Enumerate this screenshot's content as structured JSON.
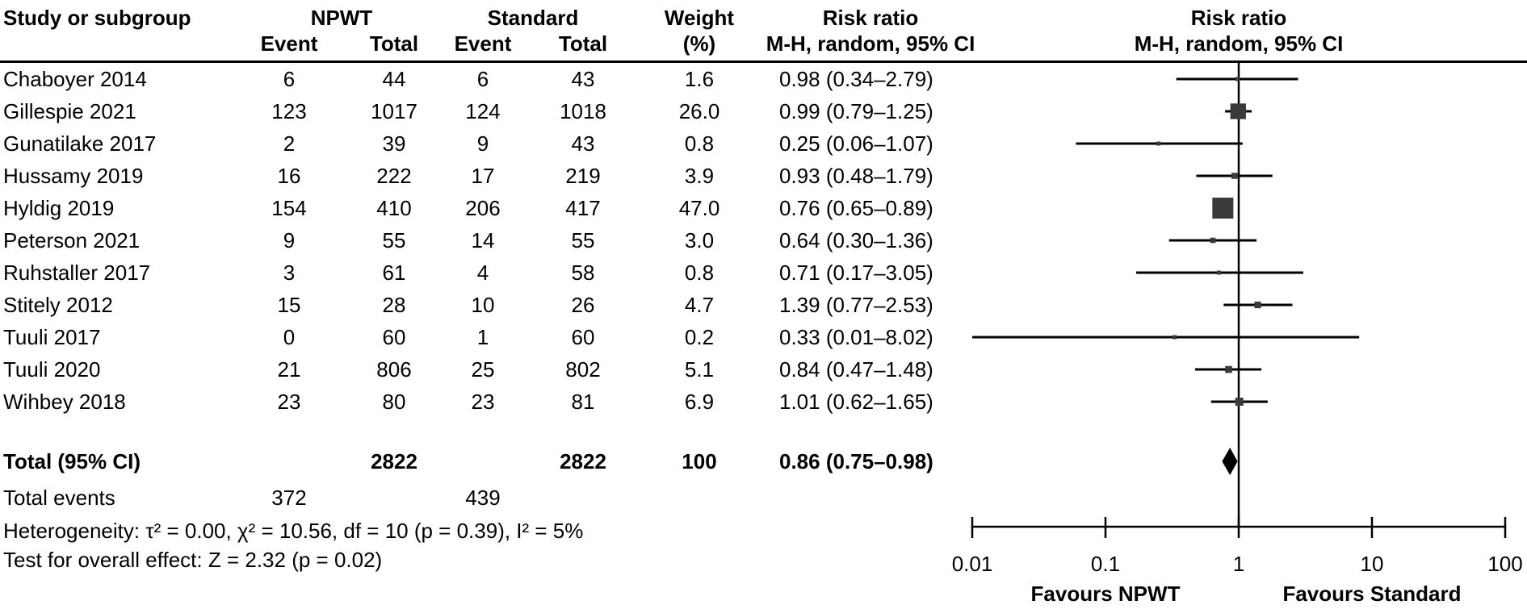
{
  "header": {
    "study": "Study or subgroup",
    "npwt": "NPWT",
    "standard": "Standard",
    "weight": "Weight",
    "event1": "Event",
    "total1": "Total",
    "event2": "Event",
    "total2": "Total",
    "pct": "(%)",
    "risk_ratio_text": "Risk ratio",
    "mh_text": "M-H, random, 95% CI",
    "risk_ratio_plot": "Risk ratio",
    "mh_plot": "M-H, random, 95% CI"
  },
  "rows": [
    {
      "study": "Chaboyer 2014",
      "e1": "6",
      "t1": "44",
      "e2": "6",
      "t2": "43",
      "w": "1.6",
      "rr": "0.98 (0.34–2.79)"
    },
    {
      "study": "Gillespie 2021",
      "e1": "123",
      "t1": "1017",
      "e2": "124",
      "t2": "1018",
      "w": "26.0",
      "rr": "0.99 (0.79–1.25)"
    },
    {
      "study": "Gunatilake 2017",
      "e1": "2",
      "t1": "39",
      "e2": "9",
      "t2": "43",
      "w": "0.8",
      "rr": "0.25 (0.06–1.07)"
    },
    {
      "study": "Hussamy 2019",
      "e1": "16",
      "t1": "222",
      "e2": "17",
      "t2": "219",
      "w": "3.9",
      "rr": "0.93 (0.48–1.79)"
    },
    {
      "study": "Hyldig 2019",
      "e1": "154",
      "t1": "410",
      "e2": "206",
      "t2": "417",
      "w": "47.0",
      "rr": "0.76 (0.65–0.89)"
    },
    {
      "study": "Peterson 2021",
      "e1": "9",
      "t1": "55",
      "e2": "14",
      "t2": "55",
      "w": "3.0",
      "rr": "0.64 (0.30–1.36)"
    },
    {
      "study": "Ruhstaller 2017",
      "e1": "3",
      "t1": "61",
      "e2": "4",
      "t2": "58",
      "w": "0.8",
      "rr": "0.71 (0.17–3.05)"
    },
    {
      "study": "Stitely 2012",
      "e1": "15",
      "t1": "28",
      "e2": "10",
      "t2": "26",
      "w": "4.7",
      "rr": "1.39 (0.77–2.53)"
    },
    {
      "study": "Tuuli 2017",
      "e1": "0",
      "t1": "60",
      "e2": "1",
      "t2": "60",
      "w": "0.2",
      "rr": "0.33 (0.01–8.02)"
    },
    {
      "study": "Tuuli 2020",
      "e1": "21",
      "t1": "806",
      "e2": "25",
      "t2": "802",
      "w": "5.1",
      "rr": "0.84 (0.47–1.48)"
    },
    {
      "study": "Wihbey 2018",
      "e1": "23",
      "t1": "80",
      "e2": "23",
      "t2": "81",
      "w": "6.9",
      "rr": "1.01 (0.62–1.65)"
    }
  ],
  "totals": {
    "label": "Total (95% CI)",
    "t1": "2822",
    "t2": "2822",
    "w": "100",
    "rr": "0.86 (0.75–0.98)",
    "events_label": "Total events",
    "events_npwt": "372",
    "events_standard": "439"
  },
  "footer": {
    "heterogeneity": "Heterogeneity:  τ² = 0.00, χ² = 10.56, df = 10 (p = 0.39), I² = 5%",
    "overall_effect": "Test for overall effect: Z = 2.32 (p = 0.02)"
  },
  "chart_data": {
    "type": "forest",
    "measure": "Risk ratio, M-H, random, 95% CI",
    "x_scale": "log10",
    "x_range": [
      0.01,
      100
    ],
    "x_ticks": [
      0.01,
      0.1,
      1,
      10,
      100
    ],
    "x_tick_labels": [
      "0.01",
      "0.1",
      "1",
      "10",
      "100"
    ],
    "reference_line": 1,
    "favours_left": "Favours NPWT",
    "favours_right": "Favours Standard",
    "marker_color": "#3a3a3a",
    "line_color": "#000000",
    "studies": [
      {
        "name": "Chaboyer 2014",
        "rr": 0.98,
        "ci_low": 0.34,
        "ci_high": 2.79,
        "weight": 1.6
      },
      {
        "name": "Gillespie 2021",
        "rr": 0.99,
        "ci_low": 0.79,
        "ci_high": 1.25,
        "weight": 26.0
      },
      {
        "name": "Gunatilake 2017",
        "rr": 0.25,
        "ci_low": 0.06,
        "ci_high": 1.07,
        "weight": 0.8
      },
      {
        "name": "Hussamy 2019",
        "rr": 0.93,
        "ci_low": 0.48,
        "ci_high": 1.79,
        "weight": 3.9
      },
      {
        "name": "Hyldig 2019",
        "rr": 0.76,
        "ci_low": 0.65,
        "ci_high": 0.89,
        "weight": 47.0
      },
      {
        "name": "Peterson 2021",
        "rr": 0.64,
        "ci_low": 0.3,
        "ci_high": 1.36,
        "weight": 3.0
      },
      {
        "name": "Ruhstaller 2017",
        "rr": 0.71,
        "ci_low": 0.17,
        "ci_high": 3.05,
        "weight": 0.8
      },
      {
        "name": "Stitely 2012",
        "rr": 1.39,
        "ci_low": 0.77,
        "ci_high": 2.53,
        "weight": 4.7
      },
      {
        "name": "Tuuli 2017",
        "rr": 0.33,
        "ci_low": 0.01,
        "ci_high": 8.02,
        "weight": 0.2
      },
      {
        "name": "Tuuli 2020",
        "rr": 0.84,
        "ci_low": 0.47,
        "ci_high": 1.48,
        "weight": 5.1
      },
      {
        "name": "Wihbey 2018",
        "rr": 1.01,
        "ci_low": 0.62,
        "ci_high": 1.65,
        "weight": 6.9
      }
    ],
    "total": {
      "rr": 0.86,
      "ci_low": 0.75,
      "ci_high": 0.98,
      "weight": 100
    }
  }
}
